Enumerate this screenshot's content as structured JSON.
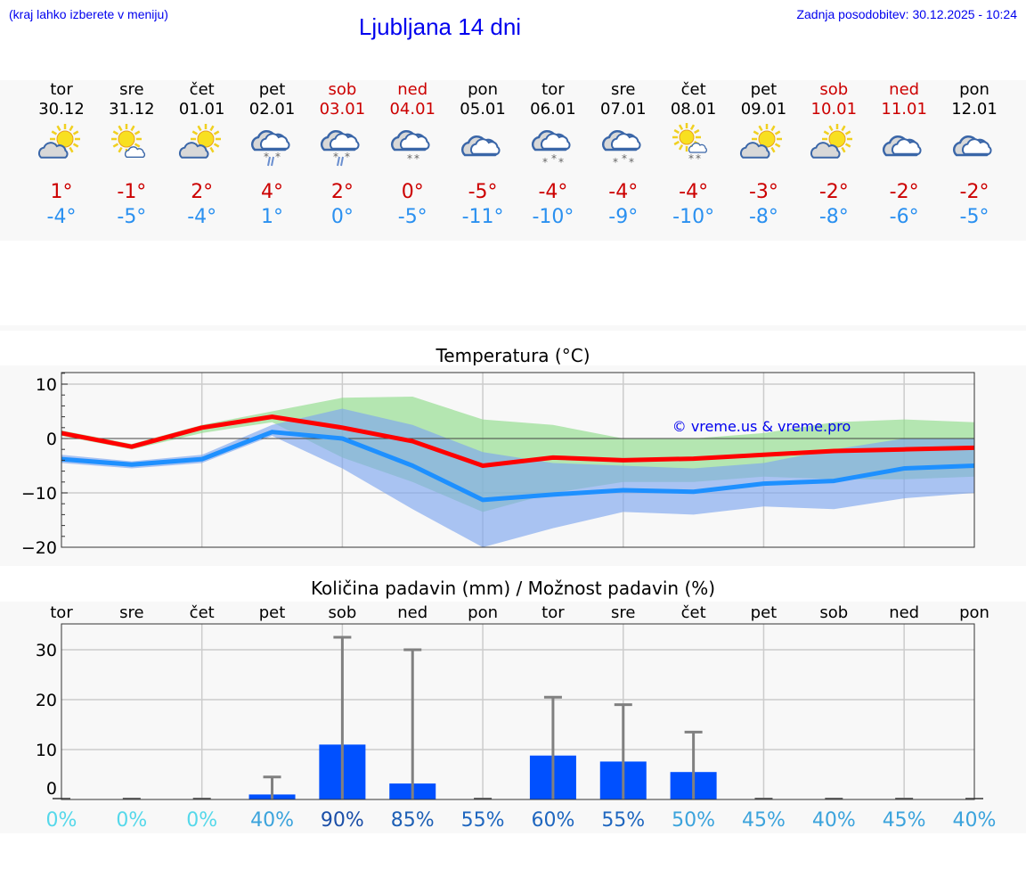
{
  "header": {
    "hint": "(kraj lahko izberete v meniju)",
    "title": "Ljubljana 14 dni",
    "updated": "Zadnja posodobitev: 30.12.2025 - 10:24"
  },
  "days": [
    {
      "name": "tor",
      "date": "30.12",
      "weekend": false,
      "icon": "partly-cloudy",
      "max": "1°",
      "min": "-4°"
    },
    {
      "name": "sre",
      "date": "31.12",
      "weekend": false,
      "icon": "sunny-small-cloud",
      "max": "-1°",
      "min": "-5°"
    },
    {
      "name": "čet",
      "date": "01.01",
      "weekend": false,
      "icon": "partly-cloudy",
      "max": "2°",
      "min": "-4°"
    },
    {
      "name": "pet",
      "date": "02.01",
      "weekend": false,
      "icon": "cloudy-rain-snow",
      "max": "4°",
      "min": "1°"
    },
    {
      "name": "sob",
      "date": "03.01",
      "weekend": true,
      "icon": "cloudy-rain-snow",
      "max": "2°",
      "min": "0°"
    },
    {
      "name": "ned",
      "date": "04.01",
      "weekend": true,
      "icon": "cloudy-snow",
      "max": "0°",
      "min": "-5°"
    },
    {
      "name": "pon",
      "date": "05.01",
      "weekend": false,
      "icon": "cloudy",
      "max": "-5°",
      "min": "-11°"
    },
    {
      "name": "tor",
      "date": "06.01",
      "weekend": false,
      "icon": "cloudy-heavy-snow",
      "max": "-4°",
      "min": "-10°"
    },
    {
      "name": "sre",
      "date": "07.01",
      "weekend": false,
      "icon": "cloudy-heavy-snow",
      "max": "-4°",
      "min": "-9°"
    },
    {
      "name": "čet",
      "date": "08.01",
      "weekend": false,
      "icon": "sun-cloud-snow",
      "max": "-4°",
      "min": "-10°"
    },
    {
      "name": "pet",
      "date": "09.01",
      "weekend": false,
      "icon": "partly-cloudy",
      "max": "-3°",
      "min": "-8°"
    },
    {
      "name": "sob",
      "date": "10.01",
      "weekend": true,
      "icon": "partly-cloudy",
      "max": "-2°",
      "min": "-8°"
    },
    {
      "name": "ned",
      "date": "11.01",
      "weekend": true,
      "icon": "cloudy",
      "max": "-2°",
      "min": "-6°"
    },
    {
      "name": "pon",
      "date": "12.01",
      "weekend": false,
      "icon": "cloudy",
      "max": "-2°",
      "min": "-5°"
    }
  ],
  "chart_data": [
    {
      "type": "line",
      "title": "Temperatura (°C)",
      "watermark": "© vreme.us & vreme.pro",
      "x": [
        "30.12",
        "31.12",
        "01.01",
        "02.01",
        "03.01",
        "04.01",
        "05.01",
        "06.01",
        "07.01",
        "08.01",
        "09.01",
        "10.01",
        "11.01",
        "12.01"
      ],
      "ylim": [
        -20,
        12
      ],
      "yticks": [
        10,
        0,
        -10,
        -20
      ],
      "ytick_labels": [
        "10",
        "0",
        "−10",
        "−20"
      ],
      "grid": true,
      "series": [
        {
          "role": "max",
          "color": "#ff0000",
          "values": [
            1,
            -1.5,
            2,
            4,
            2,
            -0.5,
            -5,
            -3.5,
            -4,
            -3.7,
            -3,
            -2.3,
            -2,
            -1.7
          ]
        },
        {
          "role": "min",
          "color": "#1e90ff",
          "values": [
            -3.8,
            -4.8,
            -3.8,
            1.2,
            0,
            -5,
            -11.3,
            -10.3,
            -9.5,
            -9.8,
            -8.3,
            -7.8,
            -5.5,
            -5
          ]
        }
      ],
      "bands": [
        {
          "role": "max-range",
          "color": "#8fdc8a",
          "upper": [
            1.5,
            -1,
            2.5,
            5,
            7.5,
            7.7,
            3.5,
            2.5,
            0,
            0,
            1,
            3,
            3.5,
            3
          ],
          "lower": [
            0.5,
            -2,
            1,
            3,
            -3.5,
            -8,
            -13.5,
            -10,
            -8,
            -8,
            -7,
            -7.5,
            -7.5,
            -7
          ]
        },
        {
          "role": "min-range",
          "color": "#7ea6ee",
          "upper": [
            -3,
            -4.2,
            -3,
            2.5,
            5.5,
            2.5,
            -2.5,
            -4.5,
            -5,
            -5.5,
            -4.5,
            -2,
            0,
            0
          ],
          "lower": [
            -4.5,
            -5.5,
            -4.5,
            0.5,
            -5.5,
            -13,
            -20,
            -16.5,
            -13.5,
            -14,
            -12.5,
            -13,
            -11,
            -10
          ]
        }
      ]
    },
    {
      "type": "bar",
      "title": "Količina padavin (mm) / Možnost padavin (%)",
      "categories": [
        "tor",
        "sre",
        "čet",
        "pet",
        "sob",
        "ned",
        "pon",
        "tor",
        "sre",
        "čet",
        "pet",
        "sob",
        "ned",
        "pon"
      ],
      "values": [
        0,
        0,
        0,
        1,
        11,
        3.2,
        0,
        8.8,
        7.6,
        5.5,
        0,
        0,
        0,
        0
      ],
      "max_values": [
        0,
        0,
        0,
        4.5,
        32.5,
        30,
        0,
        20.5,
        19,
        13.5,
        0,
        0,
        0,
        0
      ],
      "probabilities": [
        "0%",
        "0%",
        "0%",
        "40%",
        "90%",
        "85%",
        "55%",
        "60%",
        "55%",
        "50%",
        "45%",
        "40%",
        "45%",
        "40%"
      ],
      "ylim": [
        0,
        35
      ],
      "yticks": [
        0,
        10,
        20,
        30
      ],
      "grid": true,
      "bar_color": "#0050ff",
      "error_color": "#808080"
    }
  ]
}
